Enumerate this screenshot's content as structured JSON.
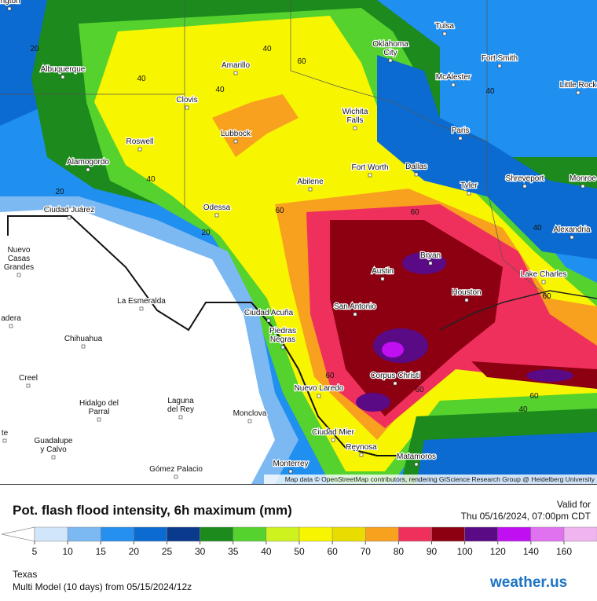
{
  "map": {
    "cities": [
      [
        "ington"
      ],
      [
        "Tulsa"
      ],
      [
        "Oklahoma",
        "City"
      ],
      [
        "Albuquerque"
      ],
      [
        "Amarillo"
      ],
      [
        "Fort Smith"
      ],
      [
        "McAlester"
      ],
      [
        "Little Rock"
      ],
      [
        "Clovis"
      ],
      [
        "Wichita",
        "Falls"
      ],
      [
        "Paris"
      ],
      [
        "Lubbock"
      ],
      [
        "Roswell"
      ],
      [
        "Alamogordo"
      ],
      [
        "Fort Worth"
      ],
      [
        "Dallas"
      ],
      [
        "Shreveport"
      ],
      [
        "Monroe"
      ],
      [
        "Abilene"
      ],
      [
        "Tyler"
      ],
      [
        "Ciudad Juárez"
      ],
      [
        "Odessa"
      ],
      [
        "Alexandria"
      ],
      [
        "Nuevo",
        "Casas",
        "Grandes"
      ],
      [
        "Bryan"
      ],
      [
        "Austin"
      ],
      [
        "Lake Charles"
      ],
      [
        "Houston"
      ],
      [
        "La Esmeralda"
      ],
      [
        "San Antonio"
      ],
      [
        "Ciudad Acuña"
      ],
      [
        "adera"
      ],
      [
        "Piedras",
        "Negras"
      ],
      [
        "Chihuahua"
      ],
      [
        "Corpus Christi"
      ],
      [
        "Creel"
      ],
      [
        "Nuevo Laredo"
      ],
      [
        "Hidalgo del",
        "Parral"
      ],
      [
        "Laguna",
        "del Rey"
      ],
      [
        "Monclova"
      ],
      [
        "Ciudad Mier"
      ],
      [
        "te"
      ],
      [
        "Guadalupe",
        "y Calvo"
      ],
      [
        "Reynosa"
      ],
      [
        "Matamoros"
      ],
      [
        "Gómez Palacio"
      ],
      [
        "Monterrey"
      ]
    ],
    "contour_labels": [
      20,
      40,
      40,
      60,
      40,
      40,
      40,
      20,
      60,
      20,
      60,
      40,
      60,
      60,
      60,
      40,
      60
    ],
    "attribution": "Map data © OpenStreetMap contributors, rendering GIScience Research Group @ Heidelberg University"
  },
  "header": {
    "title": "Pot. flash flood intensity, 6h maximum (mm)",
    "valid_label": "Valid for",
    "valid_time": "Thu 05/16/2024, 07:00pm CDT"
  },
  "legend": {
    "ticks": [
      5,
      10,
      15,
      20,
      25,
      30,
      35,
      40,
      50,
      60,
      70,
      80,
      90,
      100,
      120,
      140,
      160
    ],
    "colors": [
      "#d2e6fb",
      "#7cb8f2",
      "#2590ef",
      "#0b6bd0",
      "#0a3a8c",
      "#1c8a1c",
      "#55d22e",
      "#cdf21e",
      "#f8f500",
      "#e8dc00",
      "#f7a11f",
      "#f0305c",
      "#8c0012",
      "#5b0a86",
      "#c010f2",
      "#e072f0",
      "#f0b4f0"
    ],
    "under_color": "#ffffff",
    "over_color": "#b47a52"
  },
  "footer": {
    "region": "Texas",
    "model": "Multi Model (10 days) from 05/15/2024/12z",
    "logo": "weather.us"
  }
}
